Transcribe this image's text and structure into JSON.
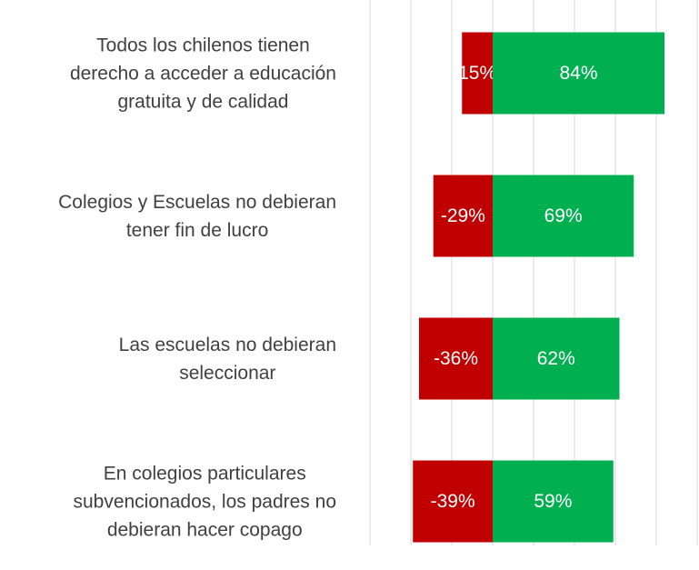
{
  "chart_data": {
    "type": "diverging_bar",
    "categories": [
      "Todos los chilenos tienen\nderecho a acceder a educación\ngratuita y de calidad",
      "Colegios y Escuelas no debieran\ntener fin de lucro",
      "Las escuelas no debieran\nseleccionar",
      "En colegios particulares\nsubvencionados, los padres no\ndebieran hacer copago"
    ],
    "series": [
      {
        "color": "#c00000",
        "values": [
          -15,
          -29,
          -36,
          -39
        ],
        "value_labels": [
          "15%",
          "-29%",
          "-36%",
          "-39%"
        ]
      },
      {
        "color": "#00b050",
        "values": [
          84,
          69,
          62,
          59
        ],
        "value_labels": [
          "84%",
          "69%",
          "62%",
          "59%"
        ]
      }
    ],
    "xlim": [
      -60,
      100
    ],
    "xticks": [
      -60,
      -40,
      -20,
      0,
      20,
      40,
      60,
      80,
      100
    ],
    "grid": true
  }
}
